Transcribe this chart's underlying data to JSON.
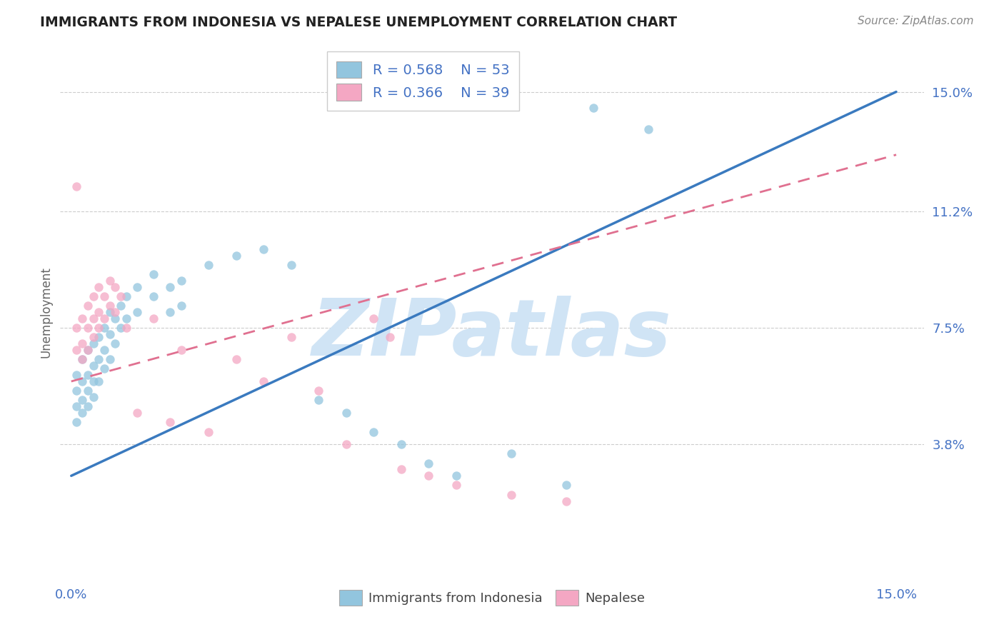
{
  "title": "IMMIGRANTS FROM INDONESIA VS NEPALESE UNEMPLOYMENT CORRELATION CHART",
  "source": "Source: ZipAtlas.com",
  "ylabel": "Unemployment",
  "y_ticks": [
    0.038,
    0.075,
    0.112,
    0.15
  ],
  "y_tick_labels": [
    "3.8%",
    "7.5%",
    "11.2%",
    "15.0%"
  ],
  "xlim": [
    -0.002,
    0.155
  ],
  "ylim": [
    -0.005,
    0.165
  ],
  "legend_labels": [
    "Immigrants from Indonesia",
    "Nepalese"
  ],
  "r_blue": 0.568,
  "n_blue": 53,
  "r_pink": 0.366,
  "n_pink": 39,
  "blue_color": "#92c5de",
  "pink_color": "#f4a7c3",
  "blue_line_color": "#3a7abf",
  "pink_line_color": "#e07090",
  "watermark": "ZIPatlas",
  "watermark_color": "#d0e4f5",
  "blue_scatter": [
    [
      0.001,
      0.06
    ],
    [
      0.001,
      0.055
    ],
    [
      0.001,
      0.05
    ],
    [
      0.001,
      0.045
    ],
    [
      0.002,
      0.065
    ],
    [
      0.002,
      0.058
    ],
    [
      0.002,
      0.052
    ],
    [
      0.002,
      0.048
    ],
    [
      0.003,
      0.068
    ],
    [
      0.003,
      0.06
    ],
    [
      0.003,
      0.055
    ],
    [
      0.003,
      0.05
    ],
    [
      0.004,
      0.07
    ],
    [
      0.004,
      0.063
    ],
    [
      0.004,
      0.058
    ],
    [
      0.004,
      0.053
    ],
    [
      0.005,
      0.072
    ],
    [
      0.005,
      0.065
    ],
    [
      0.005,
      0.058
    ],
    [
      0.006,
      0.075
    ],
    [
      0.006,
      0.068
    ],
    [
      0.006,
      0.062
    ],
    [
      0.007,
      0.08
    ],
    [
      0.007,
      0.073
    ],
    [
      0.007,
      0.065
    ],
    [
      0.008,
      0.078
    ],
    [
      0.008,
      0.07
    ],
    [
      0.009,
      0.082
    ],
    [
      0.009,
      0.075
    ],
    [
      0.01,
      0.085
    ],
    [
      0.01,
      0.078
    ],
    [
      0.012,
      0.088
    ],
    [
      0.012,
      0.08
    ],
    [
      0.015,
      0.092
    ],
    [
      0.015,
      0.085
    ],
    [
      0.018,
      0.088
    ],
    [
      0.018,
      0.08
    ],
    [
      0.02,
      0.09
    ],
    [
      0.02,
      0.082
    ],
    [
      0.025,
      0.095
    ],
    [
      0.03,
      0.098
    ],
    [
      0.035,
      0.1
    ],
    [
      0.04,
      0.095
    ],
    [
      0.045,
      0.052
    ],
    [
      0.05,
      0.048
    ],
    [
      0.055,
      0.042
    ],
    [
      0.06,
      0.038
    ],
    [
      0.065,
      0.032
    ],
    [
      0.07,
      0.028
    ],
    [
      0.08,
      0.035
    ],
    [
      0.09,
      0.025
    ],
    [
      0.095,
      0.145
    ],
    [
      0.105,
      0.138
    ]
  ],
  "pink_scatter": [
    [
      0.001,
      0.12
    ],
    [
      0.001,
      0.075
    ],
    [
      0.001,
      0.068
    ],
    [
      0.002,
      0.078
    ],
    [
      0.002,
      0.07
    ],
    [
      0.002,
      0.065
    ],
    [
      0.003,
      0.082
    ],
    [
      0.003,
      0.075
    ],
    [
      0.003,
      0.068
    ],
    [
      0.004,
      0.085
    ],
    [
      0.004,
      0.078
    ],
    [
      0.004,
      0.072
    ],
    [
      0.005,
      0.088
    ],
    [
      0.005,
      0.08
    ],
    [
      0.005,
      0.075
    ],
    [
      0.006,
      0.085
    ],
    [
      0.006,
      0.078
    ],
    [
      0.007,
      0.09
    ],
    [
      0.007,
      0.082
    ],
    [
      0.008,
      0.088
    ],
    [
      0.008,
      0.08
    ],
    [
      0.009,
      0.085
    ],
    [
      0.01,
      0.075
    ],
    [
      0.012,
      0.048
    ],
    [
      0.015,
      0.078
    ],
    [
      0.018,
      0.045
    ],
    [
      0.02,
      0.068
    ],
    [
      0.025,
      0.042
    ],
    [
      0.03,
      0.065
    ],
    [
      0.035,
      0.058
    ],
    [
      0.04,
      0.072
    ],
    [
      0.045,
      0.055
    ],
    [
      0.05,
      0.038
    ],
    [
      0.055,
      0.078
    ],
    [
      0.058,
      0.072
    ],
    [
      0.06,
      0.03
    ],
    [
      0.065,
      0.028
    ],
    [
      0.07,
      0.025
    ],
    [
      0.08,
      0.022
    ],
    [
      0.09,
      0.02
    ]
  ],
  "blue_line_x": [
    0.0,
    0.15
  ],
  "blue_line_y": [
    0.028,
    0.15
  ],
  "pink_line_x": [
    0.0,
    0.15
  ],
  "pink_line_y": [
    0.058,
    0.13
  ]
}
